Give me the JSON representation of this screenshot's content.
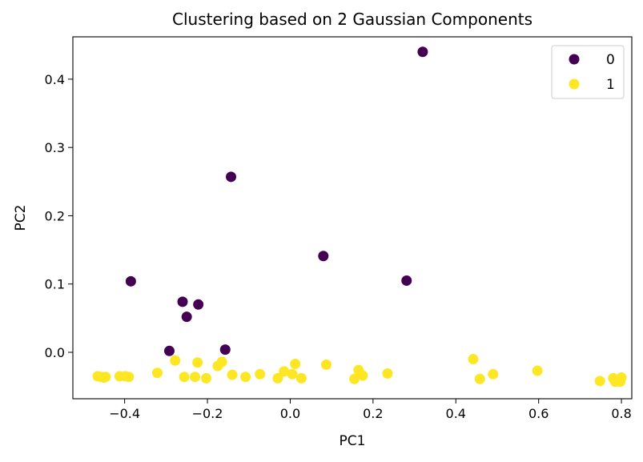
{
  "chart_data": {
    "type": "scatter",
    "title": "Clustering based on 2 Gaussian Components",
    "xlabel": "PC1",
    "ylabel": "PC2",
    "xlim": [
      -0.525,
      0.825
    ],
    "ylim": [
      -0.068,
      0.462
    ],
    "xticks": [
      -0.4,
      -0.2,
      0.0,
      0.2,
      0.4,
      0.6,
      0.8
    ],
    "xtick_labels": [
      "−0.4",
      "−0.2",
      "0.0",
      "0.2",
      "0.4",
      "0.6",
      "0.8"
    ],
    "yticks": [
      0.0,
      0.1,
      0.2,
      0.3,
      0.4
    ],
    "ytick_labels": [
      "0.0",
      "0.1",
      "0.2",
      "0.3",
      "0.4"
    ],
    "grid": false,
    "legend_position": "top-right",
    "series": [
      {
        "name": "0",
        "color": "#440154",
        "points": [
          [
            0.32,
            0.44
          ],
          [
            -0.143,
            0.257
          ],
          [
            0.08,
            0.141
          ],
          [
            0.281,
            0.105
          ],
          [
            -0.385,
            0.104
          ],
          [
            -0.26,
            0.074
          ],
          [
            -0.222,
            0.07
          ],
          [
            -0.25,
            0.052
          ],
          [
            -0.292,
            0.002
          ],
          [
            -0.157,
            0.004
          ]
        ]
      },
      {
        "name": "1",
        "color": "#fde725",
        "points": [
          [
            -0.465,
            -0.035
          ],
          [
            -0.457,
            -0.036
          ],
          [
            -0.45,
            -0.037
          ],
          [
            -0.446,
            -0.036
          ],
          [
            -0.412,
            -0.035
          ],
          [
            -0.398,
            -0.035
          ],
          [
            -0.39,
            -0.036
          ],
          [
            -0.321,
            -0.03
          ],
          [
            -0.278,
            -0.012
          ],
          [
            -0.256,
            -0.036
          ],
          [
            -0.23,
            -0.036
          ],
          [
            -0.224,
            -0.015
          ],
          [
            -0.203,
            -0.038
          ],
          [
            -0.175,
            -0.02
          ],
          [
            -0.165,
            -0.014
          ],
          [
            -0.14,
            -0.033
          ],
          [
            -0.108,
            -0.036
          ],
          [
            -0.073,
            -0.032
          ],
          [
            -0.03,
            -0.038
          ],
          [
            -0.015,
            -0.028
          ],
          [
            0.005,
            -0.032
          ],
          [
            0.012,
            -0.017
          ],
          [
            0.027,
            -0.038
          ],
          [
            0.087,
            -0.018
          ],
          [
            0.155,
            -0.039
          ],
          [
            0.165,
            -0.026
          ],
          [
            0.175,
            -0.034
          ],
          [
            0.235,
            -0.031
          ],
          [
            0.442,
            -0.01
          ],
          [
            0.458,
            -0.039
          ],
          [
            0.49,
            -0.032
          ],
          [
            0.597,
            -0.027
          ],
          [
            0.748,
            -0.042
          ],
          [
            0.78,
            -0.038
          ],
          [
            0.785,
            -0.043
          ],
          [
            0.79,
            -0.04
          ],
          [
            0.797,
            -0.043
          ],
          [
            0.8,
            -0.037
          ]
        ]
      }
    ]
  }
}
